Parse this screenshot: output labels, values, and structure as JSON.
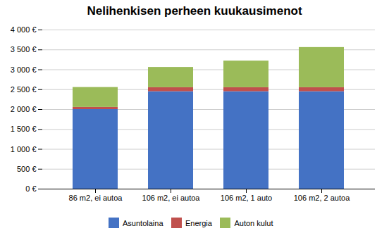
{
  "chart_data": {
    "type": "bar",
    "stacked": true,
    "title": "Nelihenkisen perheen kuukausimenot",
    "categories": [
      "86 m2, ei autoa",
      "106 m2, ei autoa",
      "106 m2, 1 auto",
      "106 m2, 2 autoa"
    ],
    "series": [
      {
        "name": "Asuntolaina",
        "color": "#4472C4",
        "values": [
          2000,
          2450,
          2450,
          2450
        ]
      },
      {
        "name": "Energia",
        "color": "#C0504D",
        "values": [
          55,
          100,
          100,
          100
        ]
      },
      {
        "name": "Auton kulut",
        "color": "#9BBB59",
        "values": [
          500,
          510,
          670,
          1010
        ]
      }
    ],
    "ylim": [
      0,
      4000
    ],
    "yticks": [
      {
        "value": 0,
        "label": "0 €"
      },
      {
        "value": 500,
        "label": "500 €"
      },
      {
        "value": 1000,
        "label": "1 000 €"
      },
      {
        "value": 1500,
        "label": "1 500 €"
      },
      {
        "value": 2000,
        "label": "2 000 €"
      },
      {
        "value": 2500,
        "label": "2 500 €"
      },
      {
        "value": 3000,
        "label": "3 000 €"
      },
      {
        "value": 3500,
        "label": "3 500 €"
      },
      {
        "value": 4000,
        "label": "4 000 €"
      }
    ],
    "grid": true,
    "legend": "bottom"
  }
}
